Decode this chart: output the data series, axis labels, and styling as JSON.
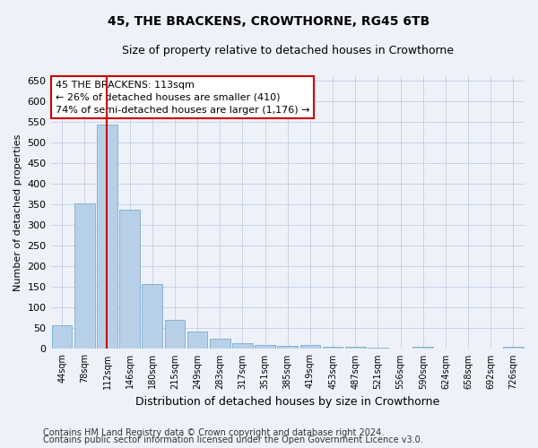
{
  "title": "45, THE BRACKENS, CROWTHORNE, RG45 6TB",
  "subtitle": "Size of property relative to detached houses in Crowthorne",
  "xlabel": "Distribution of detached houses by size in Crowthorne",
  "ylabel": "Number of detached properties",
  "footnote1": "Contains HM Land Registry data © Crown copyright and database right 2024.",
  "footnote2": "Contains public sector information licensed under the Open Government Licence v3.0.",
  "bar_labels": [
    "44sqm",
    "78sqm",
    "112sqm",
    "146sqm",
    "180sqm",
    "215sqm",
    "249sqm",
    "283sqm",
    "317sqm",
    "351sqm",
    "385sqm",
    "419sqm",
    "453sqm",
    "487sqm",
    "521sqm",
    "556sqm",
    "590sqm",
    "624sqm",
    "658sqm",
    "692sqm",
    "726sqm"
  ],
  "bar_values": [
    58,
    353,
    543,
    338,
    157,
    70,
    42,
    25,
    15,
    10,
    8,
    10,
    5,
    5,
    4,
    1,
    5,
    1,
    1,
    1,
    5
  ],
  "bar_color": "#b8cfe8",
  "bar_edge_color": "#7aadd0",
  "grid_color": "#c8d4e8",
  "annotation_line1": "45 THE BRACKENS: 113sqm",
  "annotation_line2": "← 26% of detached houses are smaller (410)",
  "annotation_line3": "74% of semi-detached houses are larger (1,176) →",
  "vline_color": "#cc0000",
  "vline_bar_index": 2,
  "ylim": [
    0,
    660
  ],
  "yticks": [
    0,
    50,
    100,
    150,
    200,
    250,
    300,
    350,
    400,
    450,
    500,
    550,
    600,
    650
  ],
  "annotation_box_facecolor": "#ffffff",
  "annotation_box_edgecolor": "#cc0000",
  "bg_color": "#eef2f8",
  "title_fontsize": 10,
  "subtitle_fontsize": 9,
  "ylabel_fontsize": 8,
  "xlabel_fontsize": 9,
  "tick_fontsize": 8,
  "xtick_fontsize": 7,
  "annotation_fontsize": 8,
  "footnote_fontsize": 7
}
